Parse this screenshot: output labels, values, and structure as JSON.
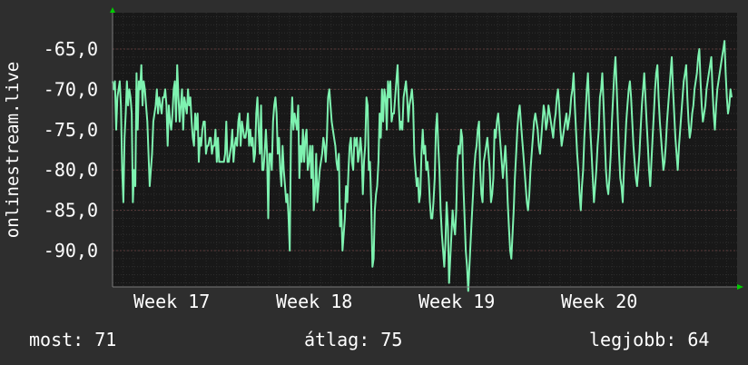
{
  "chart_data": {
    "type": "line",
    "ylabel": "onlinestream.live",
    "x_ticks": [
      "Week 17",
      "Week 18",
      "Week 19",
      "Week 20"
    ],
    "y_ticks": [
      "-65,0",
      "-70,0",
      "-75,0",
      "-80,0",
      "-85,0",
      "-90,0"
    ],
    "ylim": [
      -94.5,
      -60.5
    ],
    "grid": true,
    "line_color": "#7ef2b0",
    "series": [
      {
        "values": [
          -69,
          -70,
          -69,
          -75,
          -71,
          -70,
          -69,
          -72,
          -80,
          -84,
          -76,
          -73,
          -69,
          -72,
          -70,
          -71,
          -73,
          -84,
          -80,
          -82,
          -68,
          -75,
          -69,
          -70,
          -67,
          -72,
          -69,
          -70,
          -72,
          -74,
          -78,
          -82,
          -80,
          -78,
          -74,
          -73,
          -72,
          -70,
          -73,
          -71,
          -72,
          -73,
          -71,
          -71,
          -70,
          -72,
          -77,
          -72,
          -74,
          -75,
          -73,
          -70,
          -69,
          -74,
          -67,
          -71,
          -74,
          -72,
          -70,
          -75,
          -71,
          -72,
          -73,
          -70,
          -72,
          -71,
          -74,
          -76,
          -77,
          -73,
          -75,
          -73,
          -79,
          -76,
          -77,
          -75,
          -74,
          -74,
          -78,
          -77,
          -77,
          -76,
          -76,
          -78,
          -77,
          -77,
          -75,
          -79,
          -76,
          -79,
          -79,
          -79,
          -79,
          -79,
          -78,
          -74,
          -79,
          -79,
          -78,
          -77,
          -75,
          -79,
          -77,
          -76,
          -77,
          -74,
          -73,
          -77,
          -74,
          -75,
          -76,
          -76,
          -75,
          -73,
          -77,
          -75,
          -77,
          -76,
          -79,
          -78,
          -73,
          -71,
          -75,
          -78,
          -72,
          -80,
          -80,
          -78,
          -75,
          -78,
          -86,
          -78,
          -78,
          -80,
          -74,
          -72,
          -71,
          -73,
          -78,
          -76,
          -80,
          -82,
          -77,
          -80,
          -82,
          -84,
          -83,
          -86,
          -90,
          -75,
          -71,
          -75,
          -73,
          -74,
          -75,
          -72,
          -81,
          -77,
          -79,
          -75,
          -79,
          -76,
          -75,
          -80,
          -79,
          -77,
          -81,
          -77,
          -85,
          -83,
          -78,
          -84,
          -82,
          -80,
          -79,
          -78,
          -76,
          -77,
          -79,
          -76,
          -71,
          -70,
          -72,
          -74,
          -75,
          -76,
          -77,
          -79,
          -80,
          -78,
          -87,
          -85,
          -90,
          -88,
          -86,
          -82,
          -84,
          -80,
          -77,
          -76,
          -79,
          -80,
          -76,
          -77,
          -76,
          -79,
          -78,
          -76,
          -78,
          -83,
          -79,
          -77,
          -71,
          -72,
          -80,
          -79,
          -84,
          -92,
          -91,
          -85,
          -83,
          -82,
          -79,
          -73,
          -76,
          -70,
          -74,
          -70,
          -71,
          -75,
          -69,
          -71,
          -69,
          -74,
          -73,
          -73,
          -71,
          -69,
          -67,
          -72,
          -75,
          -74,
          -75,
          -71,
          -70,
          -69,
          -71,
          -74,
          -72,
          -71,
          -70,
          -72,
          -78,
          -80,
          -82,
          -81,
          -84,
          -83,
          -78,
          -75,
          -78,
          -77,
          -80,
          -79,
          -81,
          -84,
          -86,
          -86,
          -84,
          -81,
          -75,
          -73,
          -77,
          -80,
          -85,
          -88,
          -90,
          -92,
          -89,
          -84,
          -87,
          -94,
          -91,
          -88,
          -85,
          -87,
          -88,
          -85,
          -79,
          -77,
          -78,
          -75,
          -76,
          -82,
          -86,
          -90,
          -92,
          -95,
          -92,
          -89,
          -86,
          -83,
          -80,
          -78,
          -77,
          -75,
          -74,
          -80,
          -83,
          -84,
          -79,
          -78,
          -77,
          -76,
          -78,
          -80,
          -84,
          -83,
          -81,
          -75,
          -76,
          -74,
          -73,
          -75,
          -77,
          -79,
          -81,
          -79,
          -77,
          -80,
          -84,
          -87,
          -90,
          -91,
          -88,
          -85,
          -81,
          -78,
          -75,
          -73,
          -72,
          -74,
          -76,
          -78,
          -80,
          -82,
          -84,
          -85,
          -83,
          -80,
          -78,
          -76,
          -74,
          -73,
          -74,
          -75,
          -77,
          -78,
          -76,
          -74,
          -72,
          -73,
          -75,
          -74,
          -72,
          -73,
          -74,
          -75,
          -76,
          -74,
          -73,
          -71,
          -70,
          -72,
          -75,
          -77,
          -76,
          -75,
          -74,
          -73,
          -75,
          -74,
          -73,
          -71,
          -70,
          -68,
          -72,
          -75,
          -78,
          -80,
          -83,
          -85,
          -82,
          -80,
          -76,
          -73,
          -70,
          -68,
          -72,
          -75,
          -78,
          -81,
          -84,
          -82,
          -80,
          -77,
          -75,
          -71,
          -70,
          -68,
          -72,
          -76,
          -80,
          -82,
          -83,
          -81,
          -78,
          -74,
          -71,
          -68,
          -66,
          -70,
          -74,
          -78,
          -81,
          -82,
          -84,
          -80,
          -77,
          -74,
          -72,
          -70,
          -69,
          -71,
          -74,
          -77,
          -79,
          -81,
          -82,
          -80,
          -78,
          -75,
          -72,
          -70,
          -68,
          -71,
          -74,
          -77,
          -80,
          -82,
          -79,
          -76,
          -73,
          -70,
          -68,
          -67,
          -71,
          -74,
          -76,
          -78,
          -80,
          -79,
          -77,
          -74,
          -72,
          -70,
          -68,
          -66,
          -70,
          -73,
          -76,
          -78,
          -80,
          -77,
          -75,
          -73,
          -71,
          -69,
          -68,
          -67,
          -71,
          -74,
          -76,
          -75,
          -73,
          -72,
          -70,
          -69,
          -68,
          -66,
          -65,
          -69,
          -72,
          -74,
          -73,
          -72,
          -70,
          -69,
          -68,
          -67,
          -66,
          -70,
          -73,
          -75,
          -72,
          -70,
          -69,
          -68,
          -67,
          -66,
          -65,
          -64,
          -68,
          -71,
          -73,
          -72,
          -70,
          -71
        ]
      }
    ]
  },
  "stats": {
    "current": "most: 71",
    "average": "átlag: 75",
    "best": "legjobb: 64"
  }
}
